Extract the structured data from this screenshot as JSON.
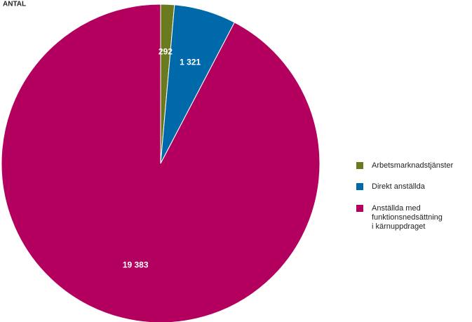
{
  "chart_data": {
    "type": "pie",
    "title": "ANTAL",
    "categories": [
      "Arbetsmarknadstjänster",
      "Direkt anställda",
      "Anställda med funktionsnedsättning i kärnuppdraget"
    ],
    "values": [
      292,
      1321,
      19383
    ],
    "value_labels": [
      "292",
      "1 321",
      "19 383"
    ],
    "colors": [
      "#6b7a1f",
      "#0069aa",
      "#b3005f"
    ]
  }
}
